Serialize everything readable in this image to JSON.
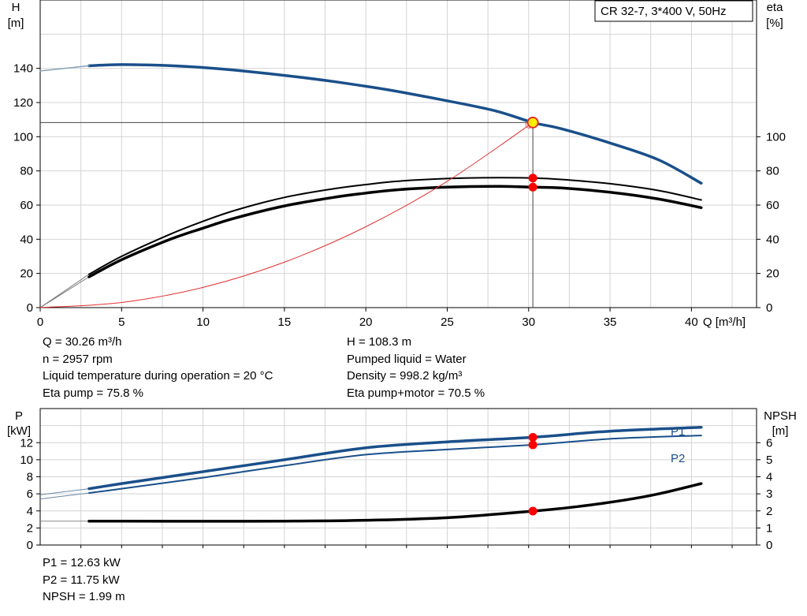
{
  "chart_data": [
    {
      "type": "line",
      "title": "CR 32-7, 3*400 V, 50Hz",
      "xlabel": "Q [m³/h]",
      "ylabel_left": [
        "H",
        "[m]"
      ],
      "ylabel_right": [
        "eta",
        "[%]"
      ],
      "xlim": [
        0,
        44
      ],
      "ylim": [
        0,
        180
      ],
      "y2lim": [
        0,
        180
      ],
      "xticks": [
        0,
        5,
        10,
        15,
        20,
        25,
        30,
        35,
        40
      ],
      "yticks": [
        0,
        20,
        40,
        60,
        80,
        100,
        120,
        140
      ],
      "y2ticks": [
        0,
        20,
        40,
        60,
        80,
        100
      ],
      "grid": true,
      "duty_point": {
        "x": 30.26,
        "y": 108.3
      },
      "series": [
        {
          "name": "H",
          "axis": "left",
          "color": "#1a4f8a",
          "x": [
            3,
            5,
            8,
            10,
            12,
            15,
            18,
            20,
            22,
            25,
            28,
            30.26,
            32,
            35,
            38,
            40.6
          ],
          "y": [
            141.5,
            142.2,
            141.6,
            140.5,
            138.9,
            135.9,
            132.3,
            129.5,
            126.4,
            121.0,
            115.0,
            108.3,
            104.7,
            96.3,
            86.4,
            72.8
          ]
        },
        {
          "name": "H (extrapolated)",
          "axis": "left",
          "color": "#8aa0b8",
          "x": [
            0,
            1,
            2,
            3
          ],
          "y": [
            138.5,
            139.5,
            140.5,
            141.5
          ]
        },
        {
          "name": "Eta pump",
          "axis": "right",
          "color": "#000000",
          "x": [
            3,
            5,
            8,
            10,
            12,
            15,
            18,
            20,
            22,
            25,
            28,
            30.26,
            32,
            35,
            38,
            40.6
          ],
          "y": [
            19.5,
            30.0,
            43.0,
            50.5,
            57.0,
            64.5,
            69.5,
            72.0,
            74.0,
            75.5,
            76.0,
            75.8,
            75.0,
            72.5,
            68.5,
            63.0
          ]
        },
        {
          "name": "Eta pump+motor",
          "axis": "right",
          "color": "#000000",
          "x": [
            3,
            5,
            8,
            10,
            12,
            15,
            18,
            20,
            22,
            25,
            28,
            30.26,
            32,
            35,
            38,
            40.6
          ],
          "y": [
            18.0,
            28.0,
            40.0,
            46.5,
            52.5,
            59.5,
            64.5,
            67.0,
            69.0,
            70.5,
            71.0,
            70.5,
            70.0,
            67.5,
            63.5,
            58.5
          ]
        },
        {
          "name": "System curve",
          "axis": "left",
          "color": "#e03030",
          "x": [
            0,
            5,
            10,
            15,
            20,
            25,
            30.26
          ],
          "y": [
            0,
            3.0,
            11.8,
            26.6,
            47.3,
            73.9,
            108.3
          ]
        }
      ],
      "markers": [
        {
          "x": 30.26,
          "y": 75.8,
          "axis": "right",
          "color": "#ff0000"
        },
        {
          "x": 30.26,
          "y": 70.5,
          "axis": "right",
          "color": "#ff0000"
        }
      ]
    },
    {
      "type": "line",
      "xlabel": "",
      "ylabel_left": [
        "P",
        "[kW]"
      ],
      "ylabel_right": [
        "NPSH",
        "[m]"
      ],
      "xlim": [
        0,
        44
      ],
      "ylim": [
        0,
        16
      ],
      "y2lim": [
        0,
        8
      ],
      "yticks": [
        0,
        2,
        4,
        6,
        8,
        10,
        12
      ],
      "y2ticks": [
        0,
        1,
        2,
        3,
        4,
        5,
        6
      ],
      "grid": true,
      "series": [
        {
          "name": "P1",
          "axis": "left",
          "color": "#1a4f8a",
          "x": [
            3,
            5,
            10,
            15,
            20,
            25,
            30.26,
            35,
            40.6
          ],
          "y": [
            6.6,
            7.2,
            8.6,
            10.0,
            11.4,
            12.1,
            12.63,
            13.35,
            13.8
          ]
        },
        {
          "name": "P2",
          "axis": "left",
          "color": "#1a4f8a",
          "x": [
            3,
            5,
            10,
            15,
            20,
            25,
            30.26,
            35,
            40.6
          ],
          "y": [
            6.1,
            6.6,
            7.9,
            9.3,
            10.6,
            11.2,
            11.75,
            12.45,
            12.85
          ]
        },
        {
          "name": "NPSH",
          "axis": "right",
          "color": "#000000",
          "x": [
            3,
            5,
            10,
            15,
            20,
            25,
            30.26,
            33,
            36,
            38,
            40.6
          ],
          "y": [
            1.4,
            1.4,
            1.39,
            1.4,
            1.45,
            1.6,
            1.99,
            2.25,
            2.65,
            3.0,
            3.6
          ]
        }
      ],
      "markers": [
        {
          "x": 30.26,
          "y": 12.63,
          "axis": "left",
          "color": "#ff0000"
        },
        {
          "x": 30.26,
          "y": 11.75,
          "axis": "left",
          "color": "#ff0000"
        },
        {
          "x": 30.26,
          "y": 1.99,
          "axis": "right",
          "color": "#ff0000"
        }
      ],
      "series_labels": {
        "p1": "P1",
        "p2": "P2"
      }
    }
  ],
  "info_top_left": [
    "Q = 30.26 m³/h",
    "n = 2957 rpm",
    "Liquid temperature during operation = 20 °C",
    "Eta pump = 75.8 %"
  ],
  "info_top_right": [
    "H = 108.3 m",
    "Pumped liquid = Water",
    "Density = 998.2 kg/m³",
    "Eta pump+motor = 70.5 %"
  ],
  "info_bottom_left": [
    "P1 = 12.63 kW",
    "P2 = 11.75 kW",
    "NPSH = 1.99 m"
  ]
}
